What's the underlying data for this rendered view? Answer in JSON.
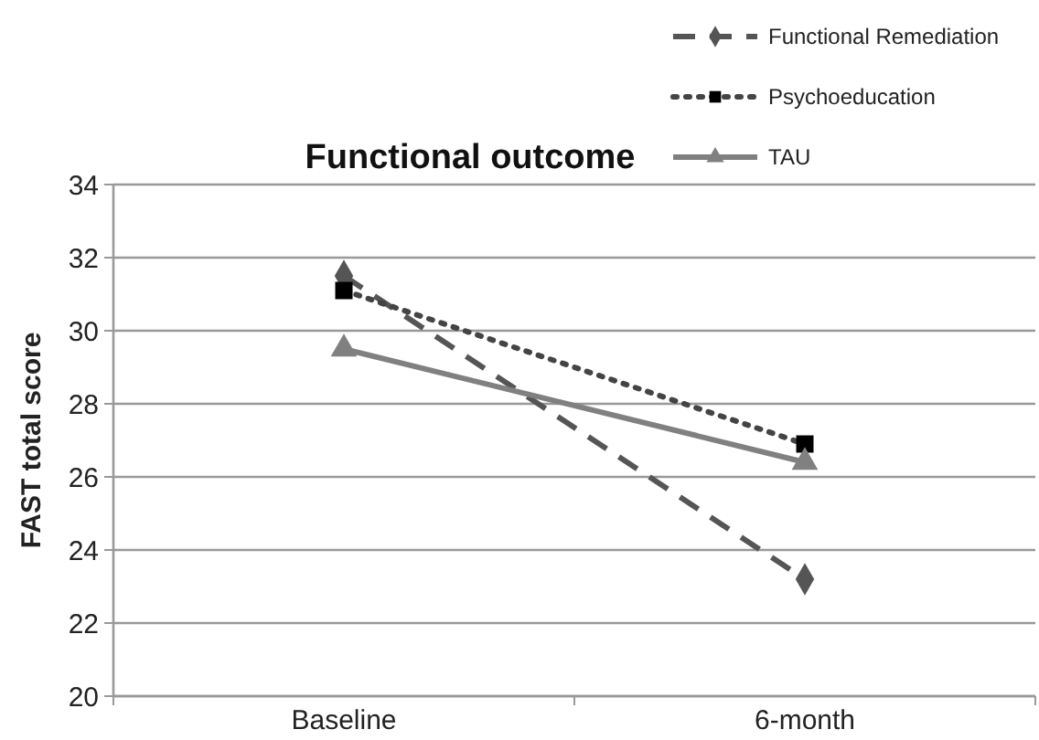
{
  "chart_data": {
    "type": "line",
    "title": "Functional outcome",
    "ylabel": "FAST total score",
    "categories": [
      "Baseline",
      "6-month"
    ],
    "series": [
      {
        "name": "Functional Remediation",
        "color": "#555555",
        "values": [
          31.5,
          23.2
        ],
        "marker": "diamond",
        "line_style": "dashed"
      },
      {
        "name": "Psychoeducation",
        "color": "#444444",
        "values": [
          31.1,
          26.9
        ],
        "marker": "square",
        "line_style": "dotted"
      },
      {
        "name": "TAU",
        "color": "#808080",
        "values": [
          29.5,
          26.4
        ],
        "marker": "triangle",
        "line_style": "solid"
      }
    ],
    "ylim": [
      20,
      34
    ],
    "yticks": [
      20,
      22,
      24,
      26,
      28,
      30,
      32,
      34
    ],
    "grid": "y",
    "legend": "top right"
  }
}
